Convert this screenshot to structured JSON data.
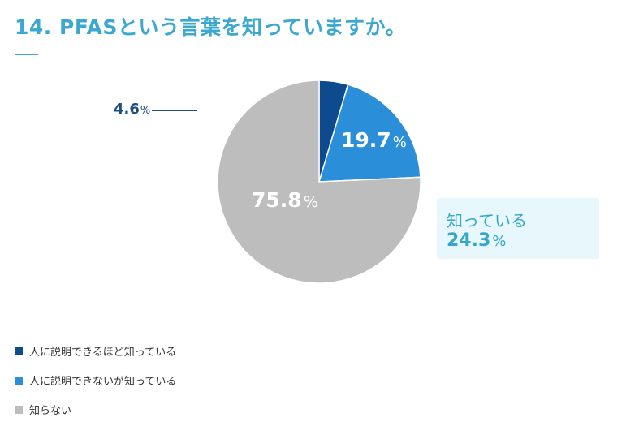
{
  "title": "14. PFASという言葉を知っていますか。",
  "colors": {
    "accent": "#3aa8cf",
    "dark_blue": "#0d4b8e",
    "mid_blue": "#2b8ed8",
    "gray": "#bdbdbd"
  },
  "chart_data": {
    "type": "pie",
    "title": "14. PFASという言葉を知っていますか。",
    "slices": [
      {
        "label": "人に説明できるほど知っている",
        "value": 4.6,
        "color": "#0d4b8e"
      },
      {
        "label": "人に説明できないが知っている",
        "value": 19.7,
        "color": "#2b8ed8"
      },
      {
        "label": "知らない",
        "value": 75.8,
        "color": "#bdbdbd"
      }
    ],
    "slice_labels": {
      "small_value": "4.6",
      "mid_value": "19.7",
      "large_value": "75.8",
      "unit": "%"
    },
    "summary": {
      "label": "知っている",
      "value": "24.3",
      "unit": "%"
    },
    "legend_position": "bottom-left"
  }
}
